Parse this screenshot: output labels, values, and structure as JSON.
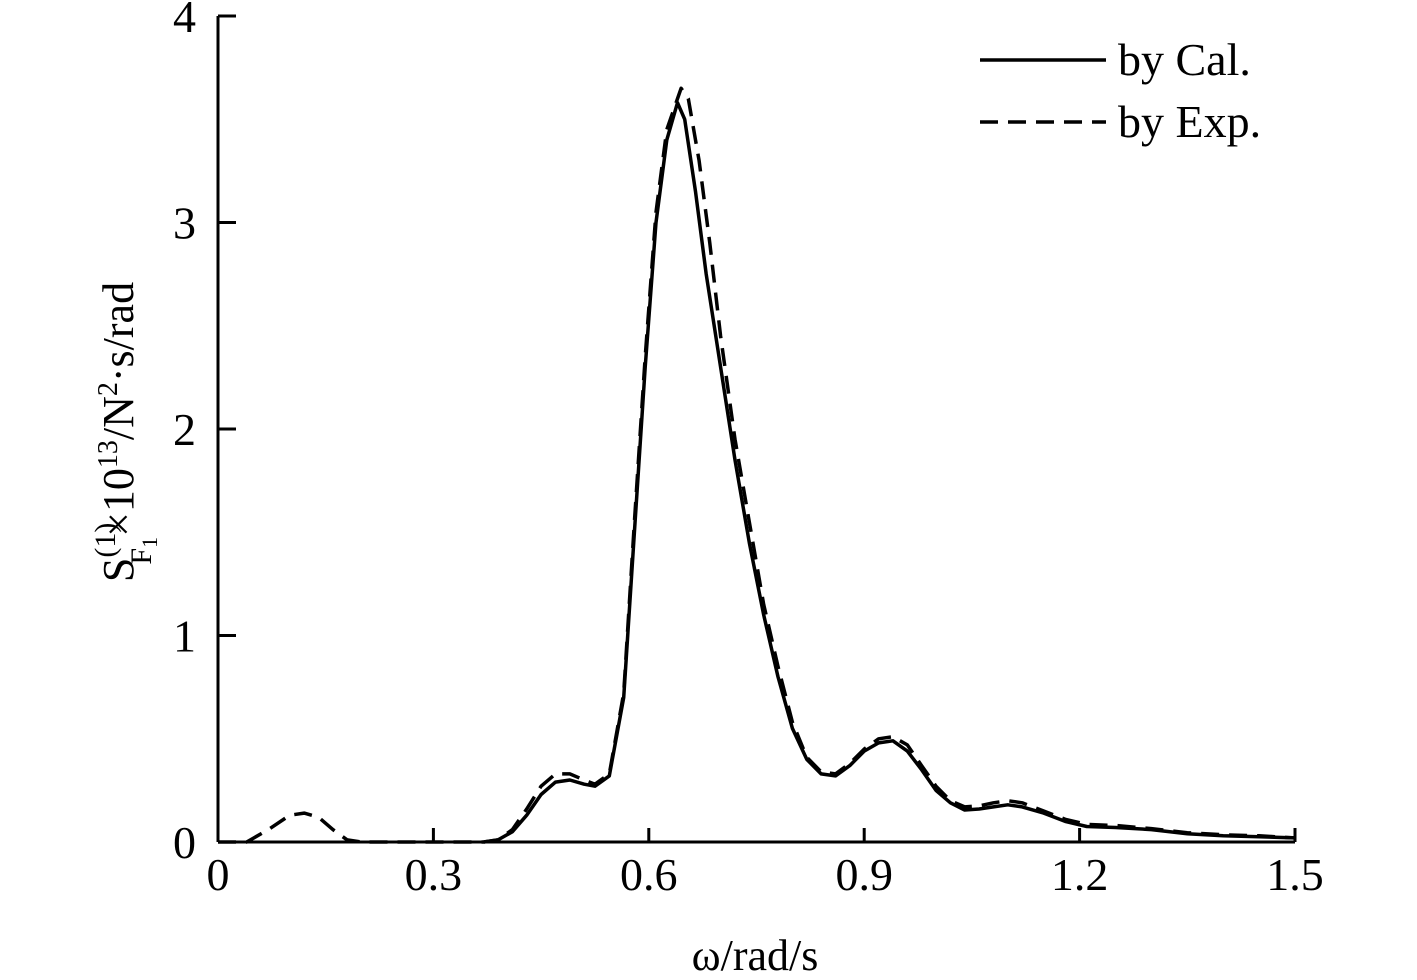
{
  "chart_data": {
    "type": "line",
    "title": "",
    "xlabel": "ω/rad/s",
    "ylabel": {
      "base": "S",
      "superscript": "(1)",
      "subscript_main": "F",
      "subscript_small": "1",
      "rest": "×10",
      "exponent": "13",
      "units_a": "/N",
      "units_exp": "2",
      "units_b": "·s/rad"
    },
    "xlim": [
      0,
      1.5
    ],
    "ylim": [
      0,
      4
    ],
    "x_ticks": [
      0,
      0.3,
      0.6,
      0.9,
      1.2,
      1.5
    ],
    "x_tick_labels": [
      "0",
      "0.3",
      "0.6",
      "0.9",
      "1.2",
      "1.5"
    ],
    "y_ticks": [
      0,
      1,
      2,
      3,
      4
    ],
    "y_tick_labels": [
      "0",
      "1",
      "2",
      "3",
      "4"
    ],
    "grid": false,
    "legend_position": "top-right",
    "series": [
      {
        "name": "by Cal.",
        "style": "solid",
        "color": "#000000",
        "points": [
          [
            0.37,
            0.0
          ],
          [
            0.39,
            0.01
          ],
          [
            0.41,
            0.05
          ],
          [
            0.43,
            0.13
          ],
          [
            0.45,
            0.23
          ],
          [
            0.47,
            0.29
          ],
          [
            0.49,
            0.3
          ],
          [
            0.51,
            0.28
          ],
          [
            0.525,
            0.27
          ],
          [
            0.545,
            0.32
          ],
          [
            0.565,
            0.7
          ],
          [
            0.58,
            1.5
          ],
          [
            0.595,
            2.3
          ],
          [
            0.61,
            3.0
          ],
          [
            0.625,
            3.4
          ],
          [
            0.64,
            3.58
          ],
          [
            0.65,
            3.5
          ],
          [
            0.665,
            3.15
          ],
          [
            0.68,
            2.75
          ],
          [
            0.7,
            2.3
          ],
          [
            0.72,
            1.85
          ],
          [
            0.74,
            1.45
          ],
          [
            0.76,
            1.1
          ],
          [
            0.78,
            0.8
          ],
          [
            0.8,
            0.55
          ],
          [
            0.82,
            0.4
          ],
          [
            0.84,
            0.33
          ],
          [
            0.86,
            0.32
          ],
          [
            0.88,
            0.37
          ],
          [
            0.9,
            0.44
          ],
          [
            0.92,
            0.48
          ],
          [
            0.94,
            0.49
          ],
          [
            0.96,
            0.44
          ],
          [
            0.98,
            0.35
          ],
          [
            1.0,
            0.25
          ],
          [
            1.02,
            0.19
          ],
          [
            1.04,
            0.155
          ],
          [
            1.06,
            0.16
          ],
          [
            1.08,
            0.17
          ],
          [
            1.1,
            0.18
          ],
          [
            1.12,
            0.17
          ],
          [
            1.15,
            0.14
          ],
          [
            1.18,
            0.1
          ],
          [
            1.21,
            0.075
          ],
          [
            1.25,
            0.07
          ],
          [
            1.3,
            0.06
          ],
          [
            1.35,
            0.04
          ],
          [
            1.4,
            0.03
          ],
          [
            1.45,
            0.025
          ],
          [
            1.5,
            0.02
          ]
        ]
      },
      {
        "name": "by Exp.",
        "style": "dashed",
        "color": "#000000",
        "points": [
          [
            0.0,
            0.0
          ],
          [
            0.04,
            0.0
          ],
          [
            0.07,
            0.06
          ],
          [
            0.1,
            0.13
          ],
          [
            0.12,
            0.14
          ],
          [
            0.14,
            0.12
          ],
          [
            0.16,
            0.06
          ],
          [
            0.18,
            0.01
          ],
          [
            0.2,
            0.0
          ],
          [
            0.3,
            0.0
          ],
          [
            0.37,
            0.0
          ],
          [
            0.39,
            0.01
          ],
          [
            0.41,
            0.06
          ],
          [
            0.43,
            0.16
          ],
          [
            0.45,
            0.27
          ],
          [
            0.47,
            0.33
          ],
          [
            0.49,
            0.33
          ],
          [
            0.51,
            0.3
          ],
          [
            0.525,
            0.28
          ],
          [
            0.545,
            0.33
          ],
          [
            0.565,
            0.72
          ],
          [
            0.58,
            1.55
          ],
          [
            0.595,
            2.35
          ],
          [
            0.61,
            3.05
          ],
          [
            0.625,
            3.45
          ],
          [
            0.645,
            3.65
          ],
          [
            0.655,
            3.6
          ],
          [
            0.67,
            3.3
          ],
          [
            0.685,
            2.9
          ],
          [
            0.7,
            2.45
          ],
          [
            0.72,
            1.95
          ],
          [
            0.74,
            1.55
          ],
          [
            0.76,
            1.15
          ],
          [
            0.78,
            0.85
          ],
          [
            0.8,
            0.58
          ],
          [
            0.82,
            0.41
          ],
          [
            0.84,
            0.34
          ],
          [
            0.86,
            0.33
          ],
          [
            0.88,
            0.38
          ],
          [
            0.9,
            0.45
          ],
          [
            0.92,
            0.5
          ],
          [
            0.94,
            0.51
          ],
          [
            0.96,
            0.47
          ],
          [
            0.98,
            0.37
          ],
          [
            1.0,
            0.27
          ],
          [
            1.02,
            0.2
          ],
          [
            1.04,
            0.17
          ],
          [
            1.06,
            0.175
          ],
          [
            1.08,
            0.19
          ],
          [
            1.1,
            0.2
          ],
          [
            1.12,
            0.19
          ],
          [
            1.15,
            0.15
          ],
          [
            1.18,
            0.11
          ],
          [
            1.21,
            0.085
          ],
          [
            1.25,
            0.08
          ],
          [
            1.3,
            0.065
          ],
          [
            1.35,
            0.045
          ],
          [
            1.4,
            0.035
          ],
          [
            1.45,
            0.03
          ],
          [
            1.5,
            0.02
          ]
        ]
      }
    ]
  }
}
